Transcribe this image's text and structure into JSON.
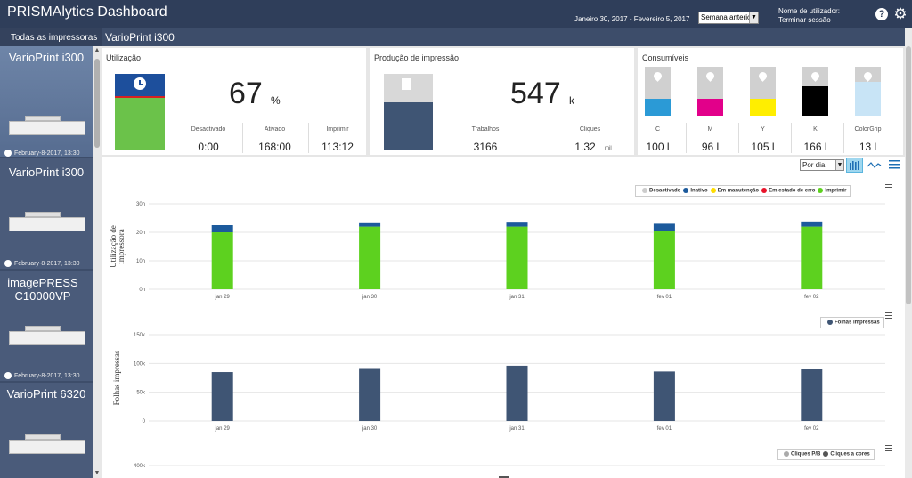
{
  "header": {
    "app_title": "PRISMAlytics Dashboard",
    "date_range": "Janeiro 30, 2017 - Fevereiro 5, 2017",
    "period_select": "Semana anterior",
    "user_label": "Nome de utilizador:",
    "logout_link": "Terminar sessão",
    "help_icon": "question-circle-icon",
    "gear_icon": "gear-icon",
    "brand_color": "#2f3e5a"
  },
  "sidebar": {
    "header": "Todas as impressoras",
    "printers": [
      {
        "name": "VarioPrint i300",
        "time": "February-8-2017, 13:30",
        "selected": true
      },
      {
        "name": "VarioPrint i300",
        "time": "February-8-2017, 13:30",
        "selected": false
      },
      {
        "name": "imagePRESS C10000VP",
        "time": "February-8-2017, 13:30",
        "selected": false
      },
      {
        "name": "VarioPrint 6320",
        "time": "",
        "selected": false
      }
    ]
  },
  "main": {
    "title": "VarioPrint i300",
    "utilization": {
      "title": "Utilização",
      "value": "67",
      "unit": "%",
      "stats": [
        {
          "label": "Desactivado",
          "value": "0:00"
        },
        {
          "label": "Ativado",
          "value": "168:00"
        },
        {
          "label": "Imprimir",
          "value": "113:12"
        }
      ],
      "clock_icon": "clock-icon"
    },
    "production": {
      "title": "Produção de impressão",
      "value": "547",
      "unit": "k",
      "stats": [
        {
          "label": "Trabalhos",
          "value": "3166",
          "suffix": ""
        },
        {
          "label": "Cliques",
          "value": "1.32",
          "suffix": "mil"
        }
      ],
      "document_icon": "document-icon"
    },
    "consumables": {
      "title": "Consumíveis",
      "inks": [
        {
          "label": "C",
          "value": "100 l",
          "color": "#2b9ad6",
          "level": 0.35
        },
        {
          "label": "M",
          "value": "96 l",
          "color": "#e2008a",
          "level": 0.35
        },
        {
          "label": "Y",
          "value": "105 l",
          "color": "#ffee00",
          "level": 0.35
        },
        {
          "label": "K",
          "value": "166 l",
          "color": "#000000",
          "level": 0.6
        },
        {
          "label": "ColorGrip",
          "value": "13 l",
          "color": "#c8e4f6",
          "level": 0.7
        }
      ]
    },
    "view_select": "Por dia"
  },
  "chart_data": [
    {
      "type": "bar",
      "stacked": true,
      "ylabel": "Utilização de impressora",
      "categories": [
        "jan 29",
        "jan 30",
        "jan 31",
        "fev 01",
        "fev 02"
      ],
      "yticks": [
        "0h",
        "10h",
        "20h",
        "30h"
      ],
      "ylim": [
        0,
        30
      ],
      "legend": "top-right",
      "series": [
        {
          "name": "Desactivado",
          "color": "#cccccc",
          "values": [
            0,
            0,
            0,
            0,
            0
          ]
        },
        {
          "name": "Inativo",
          "color": "#1c5a9c",
          "values": [
            2.5,
            1.5,
            1.7,
            2.5,
            1.8
          ]
        },
        {
          "name": "Em manutenção",
          "color": "#ffdd00",
          "values": [
            0,
            0,
            0,
            0,
            0
          ]
        },
        {
          "name": "Em estado de erro",
          "color": "#e8132a",
          "values": [
            0,
            0,
            0,
            0,
            0
          ]
        },
        {
          "name": "Imprimir",
          "color": "#5dd11f",
          "values": [
            20,
            22,
            22,
            20.5,
            22
          ]
        }
      ]
    },
    {
      "type": "bar",
      "ylabel": "Folhas impressas",
      "categories": [
        "jan 29",
        "jan 30",
        "jan 31",
        "fev 01",
        "fev 02"
      ],
      "yticks": [
        "0",
        "50k",
        "100k",
        "150k"
      ],
      "ylim": [
        0,
        150000
      ],
      "legend": "top-right",
      "series": [
        {
          "name": "Folhas impressas",
          "color": "#3f5574",
          "values": [
            85000,
            92000,
            96000,
            86000,
            91000
          ]
        }
      ]
    },
    {
      "type": "bar",
      "yticks": [
        "400k"
      ],
      "legend": "top-right",
      "series": [
        {
          "name": "Cliques P/B",
          "color": "#aaaaaa"
        },
        {
          "name": "Cliques a cores",
          "color": "#555555"
        }
      ]
    }
  ]
}
